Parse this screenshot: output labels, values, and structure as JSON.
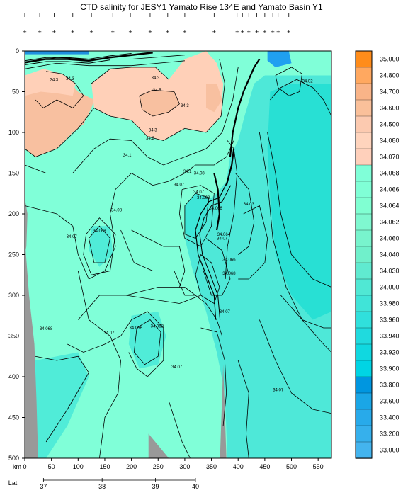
{
  "chart_data": {
    "type": "heatmap",
    "title": "CTD salinity for JESY1 Yamato Rise 134E and Yamato Basin Y1",
    "xlabel": "km",
    "xlabel2": "Lat",
    "xlim": [
      0,
      575
    ],
    "ylim": [
      500,
      0
    ],
    "x_ticks": [
      0,
      50,
      100,
      150,
      200,
      250,
      300,
      350,
      400,
      450,
      500,
      550
    ],
    "y_ticks": [
      0,
      50,
      100,
      150,
      200,
      250,
      300,
      350,
      400,
      450,
      500
    ],
    "lat_ticks": [
      {
        "km": 35,
        "label": "37"
      },
      {
        "km": 145,
        "label": "38"
      },
      {
        "km": 245,
        "label": "39"
      },
      {
        "km": 320,
        "label": "40"
      }
    ],
    "stations_km": [
      0,
      28,
      55,
      90,
      125,
      165,
      198,
      235,
      268,
      300,
      355,
      398,
      408,
      420,
      435,
      450,
      465,
      475,
      495
    ],
    "colorbar": {
      "labels": [
        "35.000",
        "34.800",
        "34.700",
        "34.600",
        "34.500",
        "34.080",
        "34.070",
        "34.068",
        "34.066",
        "34.064",
        "34.062",
        "34.060",
        "34.040",
        "34.030",
        "34.000",
        "33.980",
        "33.960",
        "33.940",
        "33.920",
        "33.900",
        "33.800",
        "33.600",
        "33.400",
        "33.200",
        "33.000"
      ],
      "colors": [
        "#ff8c1a",
        "#ffa860",
        "#f9b488",
        "#fac09a",
        "#fccab0",
        "#ffd4bd",
        "#ffd0bb",
        "#80ffd8",
        "#80ffd6",
        "#80ffd2",
        "#7ff8d0",
        "#78f4cd",
        "#70f0cb",
        "#60ead0",
        "#50e8d4",
        "#40e4d8",
        "#30e0dc",
        "#20dade",
        "#10d8e0",
        "#00d4e4",
        "#0096e0",
        "#1aa6e6",
        "#28aaea",
        "#36b0ec",
        "#44b4ee"
      ]
    },
    "contour_labels": [
      {
        "x": 55,
        "y": 35,
        "text": "34.3"
      },
      {
        "x": 85,
        "y": 34,
        "text": "34.3"
      },
      {
        "x": 245,
        "y": 33,
        "text": "34.3"
      },
      {
        "x": 248,
        "y": 48,
        "text": "34.5"
      },
      {
        "x": 300,
        "y": 67,
        "text": "34.3"
      },
      {
        "x": 240,
        "y": 97,
        "text": "34.3"
      },
      {
        "x": 235,
        "y": 107,
        "text": "34.2"
      },
      {
        "x": 192,
        "y": 128,
        "text": "34.1"
      },
      {
        "x": 305,
        "y": 148,
        "text": "34.1"
      },
      {
        "x": 327,
        "y": 150,
        "text": "34.08"
      },
      {
        "x": 289,
        "y": 164,
        "text": "34.07"
      },
      {
        "x": 326,
        "y": 173,
        "text": "34.07"
      },
      {
        "x": 335,
        "y": 180,
        "text": "34.068"
      },
      {
        "x": 172,
        "y": 195,
        "text": "34.08"
      },
      {
        "x": 358,
        "y": 193,
        "text": "34.066"
      },
      {
        "x": 420,
        "y": 188,
        "text": "34.03"
      },
      {
        "x": 140,
        "y": 221,
        "text": "34.068"
      },
      {
        "x": 88,
        "y": 228,
        "text": "34.07"
      },
      {
        "x": 373,
        "y": 225,
        "text": "34.064"
      },
      {
        "x": 370,
        "y": 230,
        "text": "34.07"
      },
      {
        "x": 383,
        "y": 256,
        "text": "34.066"
      },
      {
        "x": 383,
        "y": 273,
        "text": "34.068"
      },
      {
        "x": 375,
        "y": 320,
        "text": "34.07"
      },
      {
        "x": 40,
        "y": 341,
        "text": "34.068"
      },
      {
        "x": 158,
        "y": 346,
        "text": "34.07"
      },
      {
        "x": 208,
        "y": 340,
        "text": "34.066"
      },
      {
        "x": 248,
        "y": 338,
        "text": "34.068"
      },
      {
        "x": 285,
        "y": 388,
        "text": "34.07"
      },
      {
        "x": 475,
        "y": 416,
        "text": "34.07"
      },
      {
        "x": 530,
        "y": 37,
        "text": "34.02"
      }
    ]
  },
  "regions": {
    "background": "#80ffd8",
    "low": "#ffd0b8",
    "mid": "#f8c0a0",
    "deep_low": "#40e8dc",
    "fresh": "#20a0f0",
    "land": "#999999"
  }
}
